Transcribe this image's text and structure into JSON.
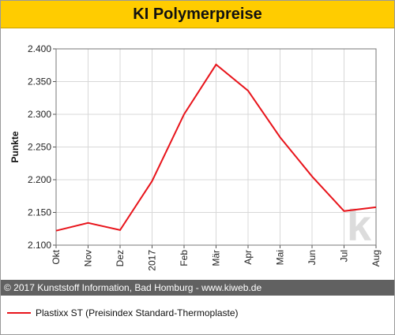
{
  "title": "KI Polymerpreise",
  "copyright": "© 2017 Kunststoff Information, Bad Homburg - www.kiweb.de",
  "watermark": "k",
  "colors": {
    "title_bar": "#ffcc00",
    "series_line": "#e8141b",
    "footer_bar": "#616161",
    "grid": "#d8d8d8"
  },
  "chart_data": {
    "type": "line",
    "categories": [
      "Okt",
      "Nov",
      "Dez",
      "2017",
      "Feb",
      "Mär",
      "Apr",
      "Mai",
      "Jun",
      "Jul",
      "Aug"
    ],
    "series": [
      {
        "name": "Plastixx ST (Preisindex Standard-Thermoplaste)",
        "values": [
          2122,
          2134,
          2123,
          2198,
          2300,
          2376,
          2336,
          2265,
          2205,
          2152,
          2158
        ]
      }
    ],
    "ylabel": "Punkte",
    "xlabel": "",
    "ylim": [
      2100,
      2400
    ],
    "yticks": [
      2100,
      2150,
      2200,
      2250,
      2300,
      2350,
      2400
    ],
    "ytick_labels": [
      "2.100",
      "2.150",
      "2.200",
      "2.250",
      "2.300",
      "2.350",
      "2.400"
    ],
    "grid": true,
    "legend_position": "bottom"
  }
}
